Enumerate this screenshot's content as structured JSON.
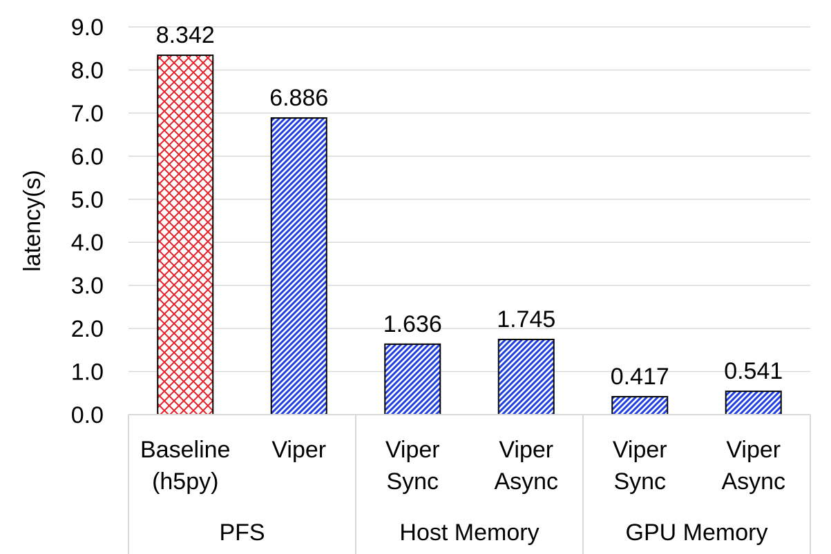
{
  "chart_data": {
    "type": "bar",
    "ylabel": "latency(s)",
    "ylim": [
      0,
      9
    ],
    "yticks": [
      "0.0",
      "1.0",
      "2.0",
      "3.0",
      "4.0",
      "5.0",
      "6.0",
      "7.0",
      "8.0",
      "9.0"
    ],
    "grid": true,
    "bars": [
      {
        "label_lines": [
          "Baseline",
          "(h5py)"
        ],
        "group": "PFS",
        "value": 8.342,
        "value_label": "8.342",
        "pattern": "crosshatch",
        "color": "#e8202a"
      },
      {
        "label_lines": [
          "Viper"
        ],
        "group": "PFS",
        "value": 6.886,
        "value_label": "6.886",
        "pattern": "diagonal",
        "color": "#1f3fe0"
      },
      {
        "label_lines": [
          "Viper",
          "Sync"
        ],
        "group": "Host Memory",
        "value": 1.636,
        "value_label": "1.636",
        "pattern": "diagonal",
        "color": "#1f3fe0"
      },
      {
        "label_lines": [
          "Viper",
          "Async"
        ],
        "group": "Host Memory",
        "value": 1.745,
        "value_label": "1.745",
        "pattern": "diagonal",
        "color": "#1f3fe0"
      },
      {
        "label_lines": [
          "Viper",
          "Sync"
        ],
        "group": "GPU Memory",
        "value": 0.417,
        "value_label": "0.417",
        "pattern": "diagonal",
        "color": "#1f3fe0"
      },
      {
        "label_lines": [
          "Viper",
          "Async"
        ],
        "group": "GPU Memory",
        "value": 0.541,
        "value_label": "0.541",
        "pattern": "diagonal",
        "color": "#1f3fe0"
      }
    ],
    "groups": [
      "PFS",
      "Host Memory",
      "GPU Memory"
    ]
  }
}
